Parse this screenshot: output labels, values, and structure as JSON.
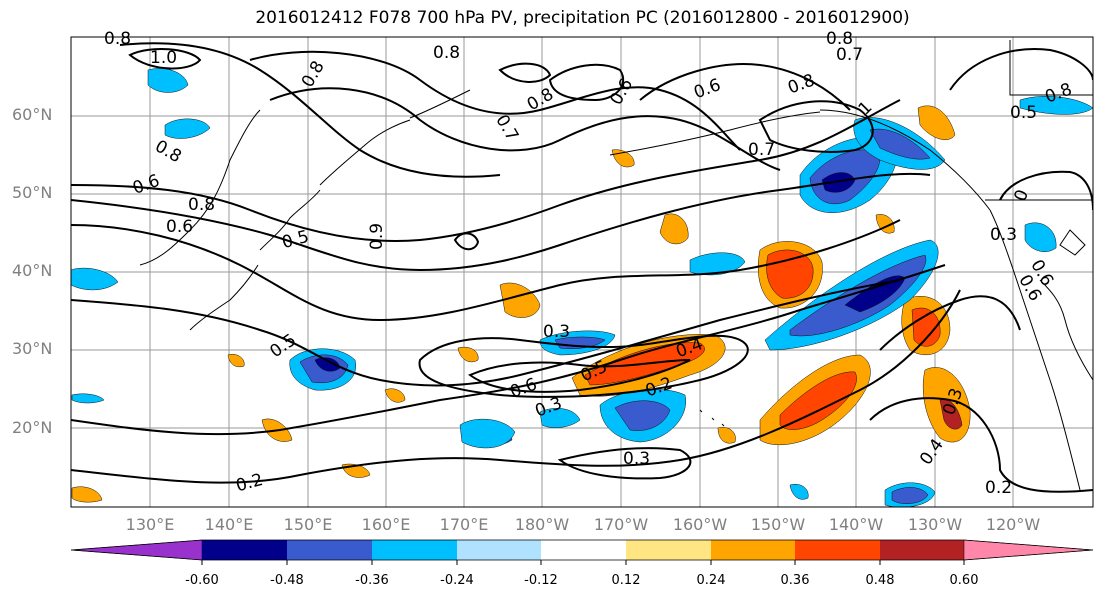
{
  "title": "2016012412 F078 700 hPa PV, precipitation PC (2016012800 - 2016012900)",
  "lat_labels": [
    "60°N",
    "50°N",
    "40°N",
    "30°N",
    "20°N"
  ],
  "lon_labels": [
    "130°E",
    "140°E",
    "150°E",
    "160°E",
    "170°E",
    "180°W",
    "170°W",
    "160°W",
    "150°W",
    "140°W",
    "130°W",
    "120°W"
  ],
  "colorbar": {
    "bounds": [
      "-0.60",
      "-0.48",
      "-0.36",
      "-0.24",
      "-0.12",
      "0.12",
      "0.24",
      "0.36",
      "0.48",
      "0.60"
    ],
    "colors": [
      "#9932CC",
      "#00008B",
      "#3A5BCD",
      "#00BFFF",
      "#B0E2FF",
      "#FFFFFF",
      "#FFE682",
      "#FFA500",
      "#FF4500",
      "#B22222",
      "#FF88AA"
    ]
  },
  "contour_labels": [
    "0.8",
    "1.0",
    "0.8",
    "0.7",
    "0.8",
    "0.8",
    "0.8",
    "0.7",
    "0.8",
    "0.6",
    "0.8",
    "0.7",
    "0.8",
    "0.5",
    "0.9",
    "0.6",
    "0.6",
    "0.6",
    "0.8",
    "0.5",
    "0.6",
    "0.6",
    "0.5",
    "0.3",
    "0.4",
    "0.5",
    "0.6",
    "0.2",
    "0.3",
    "0.3",
    "0.3",
    "0.4",
    "0.2",
    "0.2",
    "1",
    "0",
    "0.3"
  ],
  "colors": {
    "grid": "#9a9a9a",
    "contour": "#000000",
    "axis_text": "#808080"
  }
}
